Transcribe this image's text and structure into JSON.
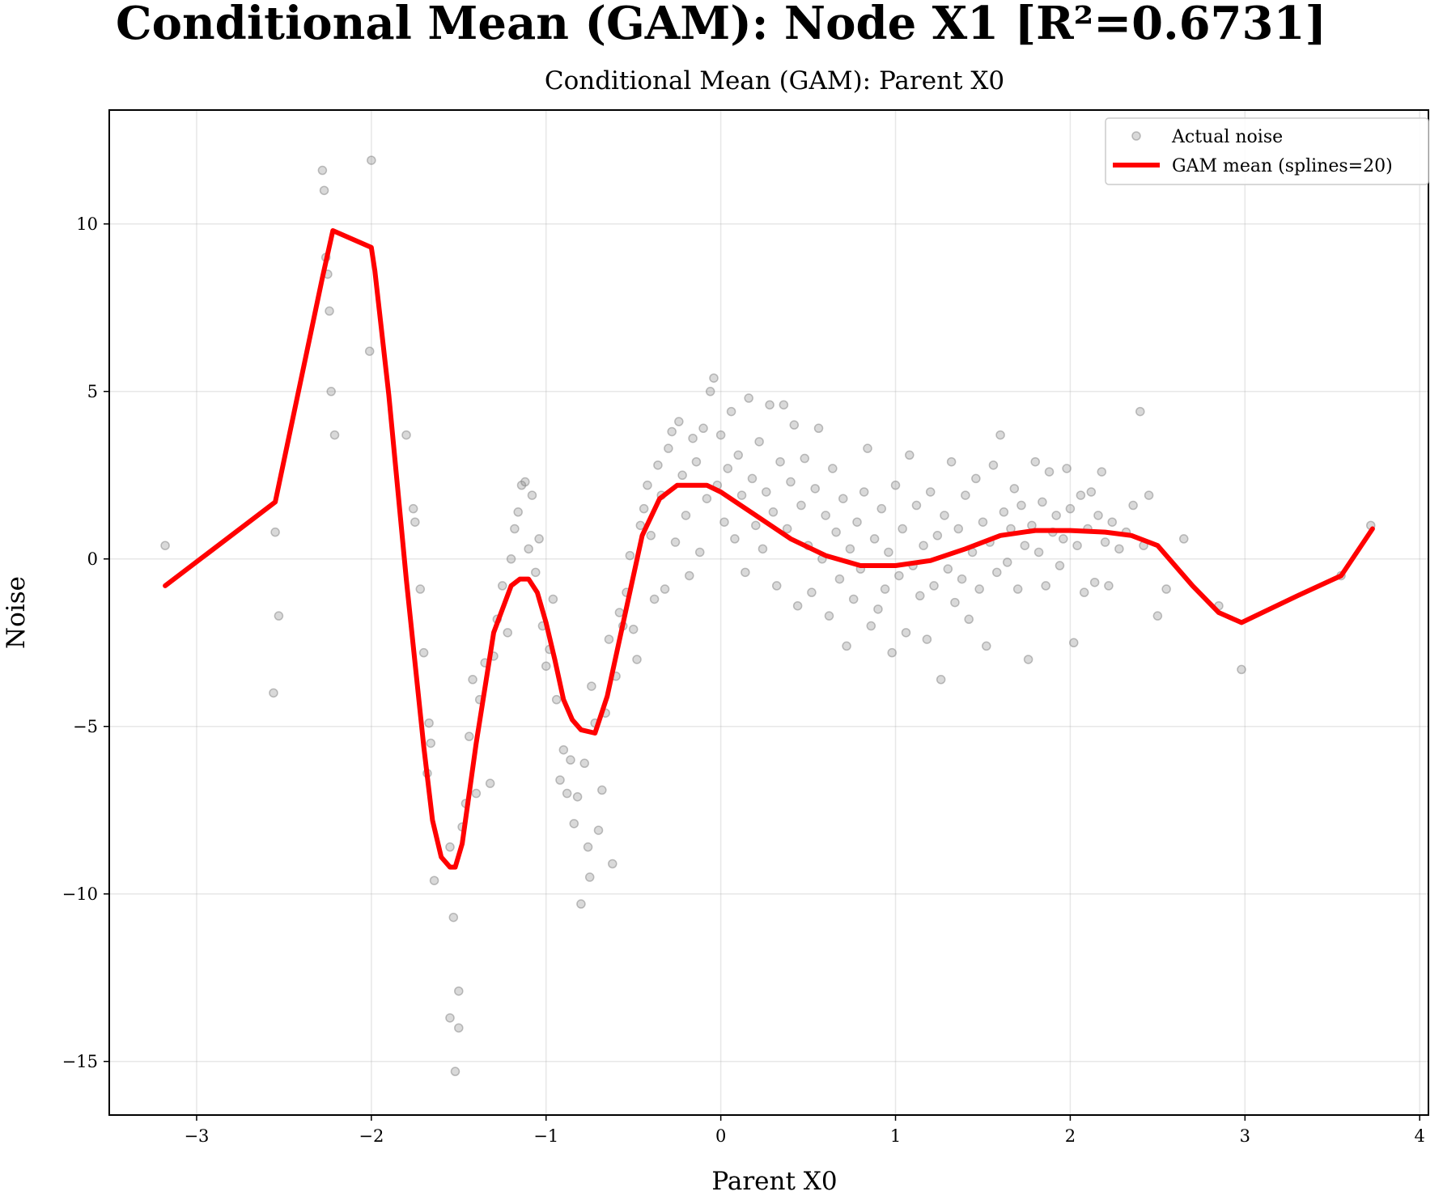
{
  "chart_data": {
    "type": "scatter",
    "title": "Conditional Mean (GAM): Node X1 [R²=0.6731]",
    "subtitle": "Conditional Mean (GAM): Parent X0",
    "xlabel": "Parent X0",
    "ylabel": "Noise",
    "xlim": [
      -3.5,
      4.05
    ],
    "ylim": [
      -16.6,
      13.4
    ],
    "xticks": [
      -3,
      -2,
      -1,
      0,
      1,
      2,
      3,
      4
    ],
    "yticks": [
      -15,
      -10,
      -5,
      0,
      5,
      10
    ],
    "xtick_labels": [
      "−3",
      "−2",
      "−1",
      "0",
      "1",
      "2",
      "3",
      "4"
    ],
    "ytick_labels": [
      "−15",
      "−10",
      "−5",
      "0",
      "5",
      "10"
    ],
    "grid": true,
    "legend_position": "top-right",
    "series": [
      {
        "name": "Actual noise",
        "kind": "scatter",
        "color": "#808080",
        "points": [
          [
            -3.18,
            0.4
          ],
          [
            -2.55,
            0.8
          ],
          [
            -2.53,
            -1.7
          ],
          [
            -2.56,
            -4.0
          ],
          [
            -2.28,
            11.6
          ],
          [
            -2.27,
            11.0
          ],
          [
            -2.25,
            8.5
          ],
          [
            -2.24,
            7.4
          ],
          [
            -2.23,
            5.0
          ],
          [
            -2.21,
            3.7
          ],
          [
            -2.26,
            9.0
          ],
          [
            -2.0,
            11.9
          ],
          [
            -2.01,
            6.2
          ],
          [
            -1.8,
            3.7
          ],
          [
            -1.76,
            1.5
          ],
          [
            -1.75,
            1.1
          ],
          [
            -1.72,
            -0.9
          ],
          [
            -1.7,
            -2.8
          ],
          [
            -1.67,
            -4.9
          ],
          [
            -1.66,
            -5.5
          ],
          [
            -1.68,
            -6.4
          ],
          [
            -1.64,
            -9.6
          ],
          [
            -1.55,
            -8.6
          ],
          [
            -1.53,
            -10.7
          ],
          [
            -1.55,
            -13.7
          ],
          [
            -1.5,
            -14.0
          ],
          [
            -1.5,
            -12.9
          ],
          [
            -1.52,
            -15.3
          ],
          [
            -1.48,
            -8.0
          ],
          [
            -1.46,
            -7.3
          ],
          [
            -1.44,
            -5.3
          ],
          [
            -1.42,
            -3.6
          ],
          [
            -1.4,
            -7.0
          ],
          [
            -1.38,
            -4.2
          ],
          [
            -1.35,
            -3.1
          ],
          [
            -1.32,
            -6.7
          ],
          [
            -1.3,
            -2.9
          ],
          [
            -1.28,
            -1.8
          ],
          [
            -1.25,
            -0.8
          ],
          [
            -1.22,
            -2.2
          ],
          [
            -1.2,
            0.0
          ],
          [
            -1.18,
            0.9
          ],
          [
            -1.16,
            1.4
          ],
          [
            -1.14,
            2.2
          ],
          [
            -1.12,
            2.3
          ],
          [
            -1.1,
            0.3
          ],
          [
            -1.08,
            1.9
          ],
          [
            -1.06,
            -0.4
          ],
          [
            -1.04,
            0.6
          ],
          [
            -1.02,
            -2.0
          ],
          [
            -1.0,
            -3.2
          ],
          [
            -0.98,
            -2.7
          ],
          [
            -0.96,
            -1.2
          ],
          [
            -0.94,
            -4.2
          ],
          [
            -0.92,
            -6.6
          ],
          [
            -0.9,
            -5.7
          ],
          [
            -0.88,
            -7.0
          ],
          [
            -0.86,
            -6.0
          ],
          [
            -0.84,
            -7.9
          ],
          [
            -0.82,
            -7.1
          ],
          [
            -0.8,
            -10.3
          ],
          [
            -0.78,
            -6.1
          ],
          [
            -0.76,
            -8.6
          ],
          [
            -0.75,
            -9.5
          ],
          [
            -0.74,
            -3.8
          ],
          [
            -0.72,
            -4.9
          ],
          [
            -0.7,
            -8.1
          ],
          [
            -0.68,
            -6.9
          ],
          [
            -0.66,
            -4.6
          ],
          [
            -0.64,
            -2.4
          ],
          [
            -0.62,
            -9.1
          ],
          [
            -0.6,
            -3.5
          ],
          [
            -0.58,
            -1.6
          ],
          [
            -0.56,
            -2.0
          ],
          [
            -0.54,
            -1.0
          ],
          [
            -0.52,
            0.1
          ],
          [
            -0.5,
            -2.1
          ],
          [
            -0.48,
            -3.0
          ],
          [
            -0.46,
            1.0
          ],
          [
            -0.44,
            1.5
          ],
          [
            -0.42,
            2.2
          ],
          [
            -0.4,
            0.7
          ],
          [
            -0.38,
            -1.2
          ],
          [
            -0.36,
            2.8
          ],
          [
            -0.34,
            1.9
          ],
          [
            -0.32,
            -0.9
          ],
          [
            -0.3,
            3.3
          ],
          [
            -0.28,
            3.8
          ],
          [
            -0.26,
            0.5
          ],
          [
            -0.24,
            4.1
          ],
          [
            -0.22,
            2.5
          ],
          [
            -0.2,
            1.3
          ],
          [
            -0.18,
            -0.5
          ],
          [
            -0.16,
            3.6
          ],
          [
            -0.14,
            2.9
          ],
          [
            -0.12,
            0.2
          ],
          [
            -0.1,
            3.9
          ],
          [
            -0.08,
            1.8
          ],
          [
            -0.06,
            5.0
          ],
          [
            -0.04,
            5.4
          ],
          [
            -0.02,
            2.2
          ],
          [
            0.0,
            3.7
          ],
          [
            0.02,
            1.1
          ],
          [
            0.04,
            2.7
          ],
          [
            0.06,
            4.4
          ],
          [
            0.08,
            0.6
          ],
          [
            0.1,
            3.1
          ],
          [
            0.12,
            1.9
          ],
          [
            0.14,
            -0.4
          ],
          [
            0.16,
            4.8
          ],
          [
            0.18,
            2.4
          ],
          [
            0.2,
            1.0
          ],
          [
            0.22,
            3.5
          ],
          [
            0.24,
            0.3
          ],
          [
            0.26,
            2.0
          ],
          [
            0.28,
            4.6
          ],
          [
            0.3,
            1.4
          ],
          [
            0.32,
            -0.8
          ],
          [
            0.34,
            2.9
          ],
          [
            0.36,
            4.6
          ],
          [
            0.38,
            0.9
          ],
          [
            0.4,
            2.3
          ],
          [
            0.42,
            4.0
          ],
          [
            0.44,
            -1.4
          ],
          [
            0.46,
            1.6
          ],
          [
            0.48,
            3.0
          ],
          [
            0.5,
            0.4
          ],
          [
            0.52,
            -1.0
          ],
          [
            0.54,
            2.1
          ],
          [
            0.56,
            3.9
          ],
          [
            0.58,
            0.0
          ],
          [
            0.6,
            1.3
          ],
          [
            0.62,
            -1.7
          ],
          [
            0.64,
            2.7
          ],
          [
            0.66,
            0.8
          ],
          [
            0.68,
            -0.6
          ],
          [
            0.7,
            1.8
          ],
          [
            0.72,
            -2.6
          ],
          [
            0.74,
            0.3
          ],
          [
            0.76,
            -1.2
          ],
          [
            0.78,
            1.1
          ],
          [
            0.8,
            -0.3
          ],
          [
            0.82,
            2.0
          ],
          [
            0.84,
            3.3
          ],
          [
            0.86,
            -2.0
          ],
          [
            0.88,
            0.6
          ],
          [
            0.9,
            -1.5
          ],
          [
            0.92,
            1.5
          ],
          [
            0.94,
            -0.9
          ],
          [
            0.96,
            0.2
          ],
          [
            0.98,
            -2.8
          ],
          [
            1.0,
            2.2
          ],
          [
            1.02,
            -0.5
          ],
          [
            1.04,
            0.9
          ],
          [
            1.06,
            -2.2
          ],
          [
            1.08,
            3.1
          ],
          [
            1.1,
            -0.2
          ],
          [
            1.12,
            1.6
          ],
          [
            1.14,
            -1.1
          ],
          [
            1.16,
            0.4
          ],
          [
            1.18,
            -2.4
          ],
          [
            1.2,
            2.0
          ],
          [
            1.22,
            -0.8
          ],
          [
            1.24,
            0.7
          ],
          [
            1.26,
            -3.6
          ],
          [
            1.28,
            1.3
          ],
          [
            1.3,
            -0.3
          ],
          [
            1.32,
            2.9
          ],
          [
            1.34,
            -1.3
          ],
          [
            1.36,
            0.9
          ],
          [
            1.38,
            -0.6
          ],
          [
            1.4,
            1.9
          ],
          [
            1.42,
            -1.8
          ],
          [
            1.44,
            0.2
          ],
          [
            1.46,
            2.4
          ],
          [
            1.48,
            -0.9
          ],
          [
            1.5,
            1.1
          ],
          [
            1.52,
            -2.6
          ],
          [
            1.54,
            0.5
          ],
          [
            1.56,
            2.8
          ],
          [
            1.58,
            -0.4
          ],
          [
            1.6,
            3.7
          ],
          [
            1.62,
            1.4
          ],
          [
            1.64,
            -0.1
          ],
          [
            1.66,
            0.9
          ],
          [
            1.68,
            2.1
          ],
          [
            1.7,
            -0.9
          ],
          [
            1.72,
            1.6
          ],
          [
            1.74,
            0.4
          ],
          [
            1.76,
            -3.0
          ],
          [
            1.78,
            1.0
          ],
          [
            1.8,
            2.9
          ],
          [
            1.82,
            0.2
          ],
          [
            1.84,
            1.7
          ],
          [
            1.86,
            -0.8
          ],
          [
            1.88,
            2.6
          ],
          [
            1.9,
            0.8
          ],
          [
            1.92,
            1.3
          ],
          [
            1.94,
            -0.2
          ],
          [
            1.96,
            0.6
          ],
          [
            1.98,
            2.7
          ],
          [
            2.0,
            1.5
          ],
          [
            2.02,
            -2.5
          ],
          [
            2.04,
            0.4
          ],
          [
            2.06,
            1.9
          ],
          [
            2.08,
            -1.0
          ],
          [
            2.1,
            0.9
          ],
          [
            2.12,
            2.0
          ],
          [
            2.14,
            -0.7
          ],
          [
            2.16,
            1.3
          ],
          [
            2.18,
            2.6
          ],
          [
            2.2,
            0.5
          ],
          [
            2.22,
            -0.8
          ],
          [
            2.24,
            1.1
          ],
          [
            2.28,
            0.3
          ],
          [
            2.32,
            0.8
          ],
          [
            2.36,
            1.6
          ],
          [
            2.4,
            4.4
          ],
          [
            2.42,
            0.4
          ],
          [
            2.45,
            1.9
          ],
          [
            2.5,
            -1.7
          ],
          [
            2.55,
            -0.9
          ],
          [
            2.65,
            0.6
          ],
          [
            2.85,
            -1.4
          ],
          [
            2.98,
            -3.3
          ],
          [
            3.55,
            -0.5
          ],
          [
            3.72,
            1.0
          ]
        ]
      },
      {
        "name": "GAM mean (splines=20)",
        "kind": "line",
        "color": "#ff0000",
        "x": [
          -3.18,
          -2.55,
          -2.28,
          -2.22,
          -2.0,
          -1.98,
          -1.9,
          -1.8,
          -1.7,
          -1.65,
          -1.6,
          -1.55,
          -1.52,
          -1.48,
          -1.4,
          -1.3,
          -1.2,
          -1.15,
          -1.1,
          -1.05,
          -1.0,
          -0.95,
          -0.9,
          -0.85,
          -0.8,
          -0.72,
          -0.65,
          -0.55,
          -0.45,
          -0.35,
          -0.25,
          -0.15,
          -0.08,
          0.0,
          0.2,
          0.4,
          0.6,
          0.8,
          1.0,
          1.2,
          1.4,
          1.6,
          1.8,
          2.0,
          2.2,
          2.35,
          2.5,
          2.7,
          2.85,
          2.98,
          3.3,
          3.55,
          3.73
        ],
        "y": [
          -0.8,
          1.7,
          8.4,
          9.8,
          9.3,
          8.6,
          4.9,
          -0.6,
          -5.6,
          -7.8,
          -8.9,
          -9.2,
          -9.2,
          -8.5,
          -5.5,
          -2.2,
          -0.8,
          -0.6,
          -0.6,
          -1.0,
          -1.9,
          -3.0,
          -4.2,
          -4.8,
          -5.1,
          -5.2,
          -4.1,
          -1.7,
          0.7,
          1.8,
          2.2,
          2.2,
          2.2,
          2.0,
          1.3,
          0.6,
          0.1,
          -0.2,
          -0.2,
          -0.05,
          0.3,
          0.7,
          0.85,
          0.85,
          0.8,
          0.7,
          0.4,
          -0.8,
          -1.6,
          -1.9,
          -1.1,
          -0.5,
          0.9
        ]
      }
    ]
  }
}
